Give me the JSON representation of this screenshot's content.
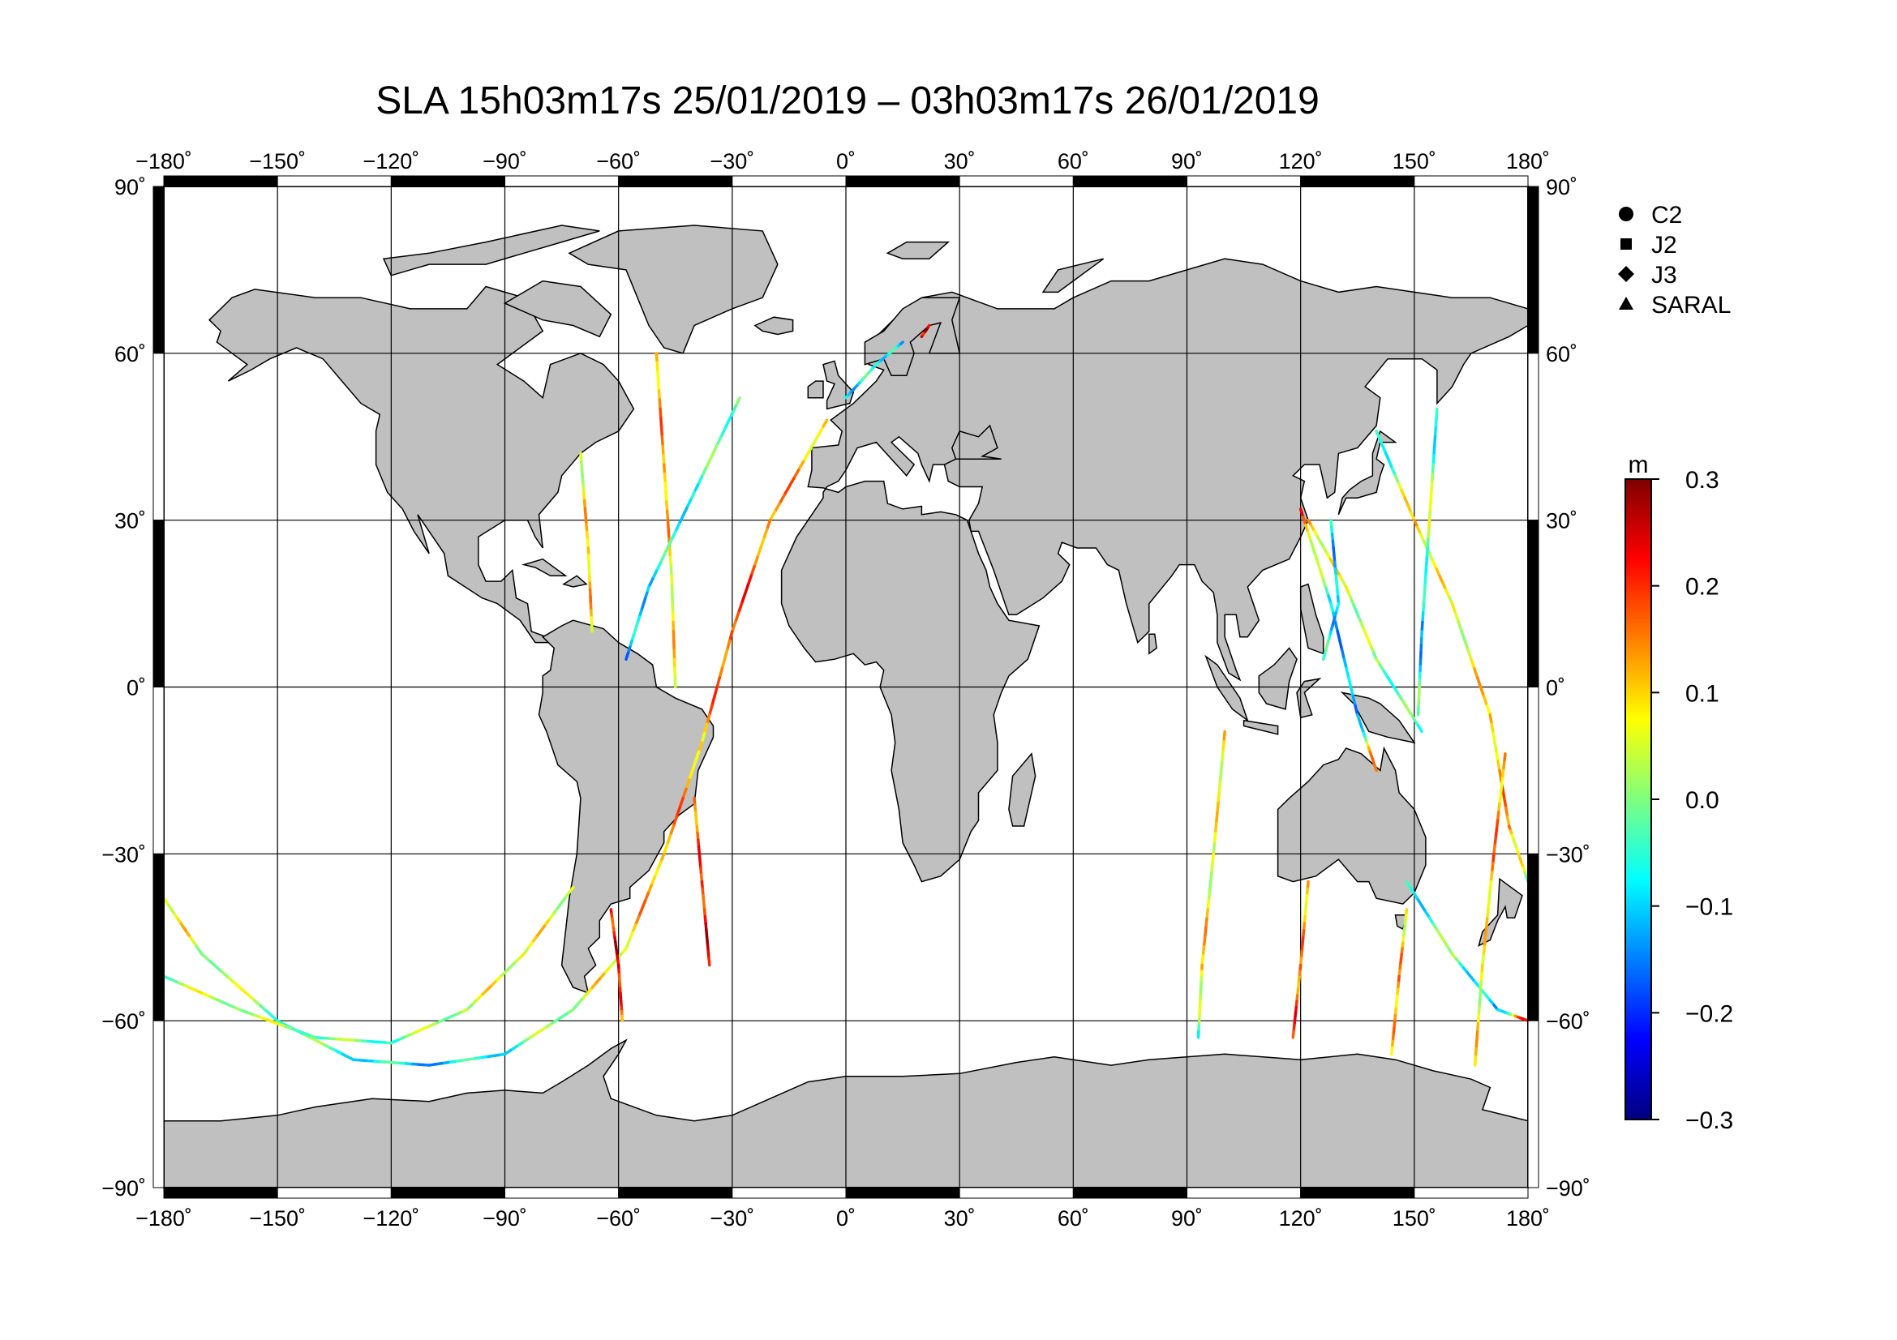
{
  "title": "SLA 15h03m17s 25/01/2019 – 03h03m17s 26/01/2019",
  "map": {
    "projection": "equirectangular",
    "lon_range": [
      -180,
      180
    ],
    "lat_range": [
      -90,
      90
    ],
    "grid_step_degrees": 30,
    "land_color": "#c0c0c0",
    "ocean_color": "#ffffff",
    "lon_ticks": [
      {
        "value": -180,
        "label": "−180˚"
      },
      {
        "value": -150,
        "label": "−150˚"
      },
      {
        "value": -120,
        "label": "−120˚"
      },
      {
        "value": -90,
        "label": "−90˚"
      },
      {
        "value": -60,
        "label": "−60˚"
      },
      {
        "value": -30,
        "label": "−30˚"
      },
      {
        "value": 0,
        "label": "0˚"
      },
      {
        "value": 30,
        "label": "30˚"
      },
      {
        "value": 60,
        "label": "60˚"
      },
      {
        "value": 90,
        "label": "90˚"
      },
      {
        "value": 120,
        "label": "120˚"
      },
      {
        "value": 150,
        "label": "150˚"
      },
      {
        "value": 180,
        "label": "180˚"
      }
    ],
    "lat_ticks": [
      {
        "value": 90,
        "label": "90˚"
      },
      {
        "value": 60,
        "label": "60˚"
      },
      {
        "value": 30,
        "label": "30˚"
      },
      {
        "value": 0,
        "label": "0˚"
      },
      {
        "value": -30,
        "label": "−30˚"
      },
      {
        "value": -60,
        "label": "−60˚"
      },
      {
        "value": -90,
        "label": "−90˚"
      }
    ]
  },
  "legend": [
    {
      "symbol": "circle",
      "label": "C2"
    },
    {
      "symbol": "square",
      "label": "J2"
    },
    {
      "symbol": "diamond",
      "label": "J3"
    },
    {
      "symbol": "triangle",
      "label": "SARAL"
    }
  ],
  "colorbar": {
    "unit": "m",
    "min": -0.3,
    "max": 0.3,
    "ticks": [
      {
        "value": 0.3,
        "label": "0.3"
      },
      {
        "value": 0.2,
        "label": "0.2"
      },
      {
        "value": 0.1,
        "label": "0.1"
      },
      {
        "value": 0.0,
        "label": "0.0"
      },
      {
        "value": -0.1,
        "label": "−0.1"
      },
      {
        "value": -0.2,
        "label": "−0.2"
      },
      {
        "value": -0.3,
        "label": "−0.3"
      }
    ],
    "stops": [
      "#00007f",
      "#0000ff",
      "#007fff",
      "#00ffff",
      "#7fff7f",
      "#ffff00",
      "#ff7f00",
      "#ff0000",
      "#7f0000"
    ]
  },
  "tracks": [
    {
      "satellite": "J3",
      "points": [
        [
          -50,
          60
        ],
        [
          -48,
          40
        ],
        [
          -46,
          20
        ],
        [
          -45,
          0
        ]
      ],
      "values": [
        0.12,
        0.15,
        0.08,
        0.1
      ]
    },
    {
      "satellite": "J3",
      "points": [
        [
          -70,
          42
        ],
        [
          -68,
          25
        ],
        [
          -67,
          10
        ]
      ],
      "values": [
        0.05,
        0.12,
        0.1
      ]
    },
    {
      "satellite": "SARAL",
      "points": [
        [
          -28,
          52
        ],
        [
          -40,
          35
        ],
        [
          -52,
          18
        ],
        [
          -58,
          5
        ]
      ],
      "values": [
        0.0,
        -0.05,
        -0.08,
        -0.12
      ]
    },
    {
      "satellite": "C2",
      "points": [
        [
          -5,
          48
        ],
        [
          -20,
          30
        ],
        [
          -30,
          10
        ],
        [
          -38,
          -10
        ],
        [
          -48,
          -30
        ],
        [
          -58,
          -47
        ],
        [
          -72,
          -58
        ],
        [
          -90,
          -66
        ],
        [
          -110,
          -68
        ],
        [
          -130,
          -67
        ],
        [
          -150,
          -60
        ],
        [
          -170,
          -48
        ],
        [
          -180,
          -38
        ]
      ],
      "values": [
        0.1,
        0.15,
        0.2,
        0.12,
        0.15,
        0.1,
        0.05,
        -0.05,
        -0.1,
        -0.05,
        0.0,
        0.05,
        0.1
      ]
    },
    {
      "satellite": "C2",
      "points": [
        [
          -72,
          -36
        ],
        [
          -85,
          -48
        ],
        [
          -100,
          -58
        ],
        [
          -120,
          -64
        ],
        [
          -140,
          -63
        ],
        [
          -160,
          -58
        ],
        [
          -180,
          -52
        ]
      ],
      "values": [
        0.05,
        0.08,
        0.05,
        -0.02,
        0.0,
        0.05,
        0.02
      ]
    },
    {
      "satellite": "J3",
      "points": [
        [
          -40,
          -20
        ],
        [
          -38,
          -35
        ],
        [
          -36,
          -50
        ]
      ],
      "values": [
        0.15,
        0.2,
        0.25
      ]
    },
    {
      "satellite": "J2",
      "points": [
        [
          -62,
          -40
        ],
        [
          -60,
          -50
        ],
        [
          -59,
          -60
        ]
      ],
      "values": [
        0.2,
        0.25,
        0.15
      ]
    },
    {
      "satellite": "SARAL",
      "points": [
        [
          0,
          52
        ],
        [
          8,
          58
        ],
        [
          15,
          62
        ]
      ],
      "values": [
        -0.1,
        -0.05,
        -0.1
      ]
    },
    {
      "satellite": "SARAL",
      "points": [
        [
          20,
          63
        ],
        [
          22,
          65
        ]
      ],
      "values": [
        0.25,
        0.25
      ]
    },
    {
      "satellite": "J3",
      "points": [
        [
          100,
          -8
        ],
        [
          97,
          -30
        ],
        [
          94,
          -50
        ],
        [
          93,
          -63
        ]
      ],
      "values": [
        0.1,
        0.05,
        0.12,
        -0.05
      ]
    },
    {
      "satellite": "J3",
      "points": [
        [
          122,
          -35
        ],
        [
          120,
          -50
        ],
        [
          118,
          -63
        ]
      ],
      "values": [
        0.1,
        0.15,
        0.2
      ]
    },
    {
      "satellite": "J3",
      "points": [
        [
          148,
          -40
        ],
        [
          146,
          -52
        ],
        [
          144,
          -66
        ]
      ],
      "values": [
        0.05,
        0.15,
        0.1
      ]
    },
    {
      "satellite": "J2",
      "points": [
        [
          120,
          32
        ],
        [
          128,
          15
        ],
        [
          135,
          -5
        ],
        [
          140,
          -15
        ]
      ],
      "values": [
        0.2,
        -0.1,
        -0.15,
        0.2
      ]
    },
    {
      "satellite": "C2",
      "points": [
        [
          122,
          30
        ],
        [
          132,
          18
        ],
        [
          140,
          5
        ],
        [
          152,
          -8
        ]
      ],
      "values": [
        0.1,
        0.05,
        0.0,
        -0.05
      ]
    },
    {
      "satellite": "SARAL",
      "points": [
        [
          140,
          46
        ],
        [
          150,
          30
        ],
        [
          160,
          15
        ],
        [
          170,
          -5
        ],
        [
          175,
          -25
        ],
        [
          180,
          -35
        ]
      ],
      "values": [
        -0.1,
        0.1,
        0.05,
        0.1,
        0.15,
        0.0
      ]
    },
    {
      "satellite": "J3",
      "points": [
        [
          156,
          50
        ],
        [
          154,
          30
        ],
        [
          152,
          10
        ],
        [
          151,
          -5
        ]
      ],
      "values": [
        -0.1,
        0.05,
        -0.15,
        0.0
      ]
    },
    {
      "satellite": "C2",
      "points": [
        [
          148,
          -35
        ],
        [
          160,
          -48
        ],
        [
          172,
          -58
        ],
        [
          180,
          -60
        ]
      ],
      "values": [
        -0.1,
        0.0,
        -0.15,
        0.25
      ]
    },
    {
      "satellite": "J2",
      "points": [
        [
          174,
          -12
        ],
        [
          171,
          -30
        ],
        [
          168,
          -50
        ],
        [
          166,
          -68
        ]
      ],
      "values": [
        0.1,
        0.15,
        0.05,
        0.1
      ]
    },
    {
      "satellite": "SARAL",
      "points": [
        [
          128,
          30
        ],
        [
          130,
          15
        ],
        [
          126,
          5
        ]
      ],
      "values": [
        -0.1,
        -0.12,
        -0.05
      ]
    }
  ]
}
